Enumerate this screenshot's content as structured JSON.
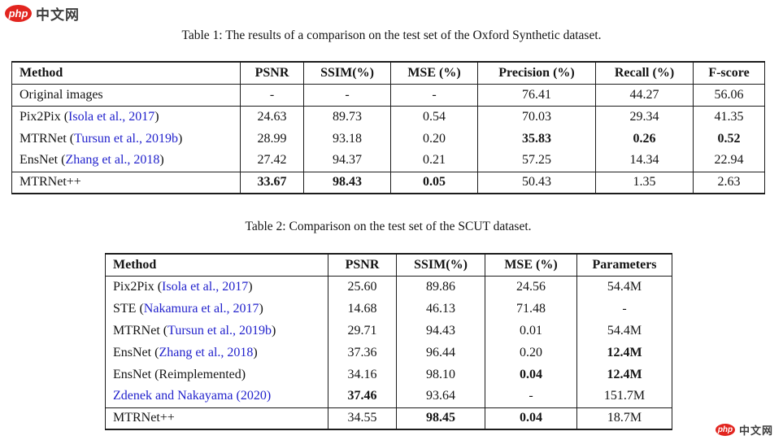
{
  "colors": {
    "link": "#2222cc",
    "badge": "#e2251f",
    "badge_text": "#ffffff",
    "logo_text": "#3d3d3d",
    "watermark_text": "#3d3d3d",
    "border": "#1c1c1c",
    "text": "#141414"
  },
  "logo_top": {
    "badge": "php",
    "text": "中文网"
  },
  "logo_bottom": {
    "badge": "php",
    "text": "中文网"
  },
  "table1": {
    "caption": "Table 1: The results of a comparison on the test set of the Oxford Synthetic dataset.",
    "columns": [
      "Method",
      "PSNR",
      "SSIM(%)",
      "MSE (%)",
      "Precision (%)",
      "Recall (%)",
      "F-score"
    ],
    "rows": [
      {
        "method": {
          "pre": "Original images",
          "link": "",
          "post": ""
        },
        "cells": [
          {
            "v": "-"
          },
          {
            "v": "-"
          },
          {
            "v": "-"
          },
          {
            "v": "76.41"
          },
          {
            "v": "44.27"
          },
          {
            "v": "56.06"
          }
        ],
        "rule_below": true
      },
      {
        "method": {
          "pre": "Pix2Pix (",
          "link": "Isola et al., 2017",
          "post": ")"
        },
        "cells": [
          {
            "v": "24.63"
          },
          {
            "v": "89.73"
          },
          {
            "v": "0.54"
          },
          {
            "v": "70.03"
          },
          {
            "v": "29.34"
          },
          {
            "v": "41.35"
          }
        ]
      },
      {
        "method": {
          "pre": "MTRNet (",
          "link": "Tursun et al., 2019b",
          "post": ")"
        },
        "cells": [
          {
            "v": "28.99"
          },
          {
            "v": "93.18"
          },
          {
            "v": "0.20"
          },
          {
            "v": "35.83",
            "b": true
          },
          {
            "v": "0.26",
            "b": true
          },
          {
            "v": "0.52",
            "b": true
          }
        ]
      },
      {
        "method": {
          "pre": "EnsNet (",
          "link": "Zhang et al., 2018",
          "post": ")"
        },
        "cells": [
          {
            "v": "27.42"
          },
          {
            "v": "94.37"
          },
          {
            "v": "0.21"
          },
          {
            "v": "57.25"
          },
          {
            "v": "14.34"
          },
          {
            "v": "22.94"
          }
        ],
        "rule_below": true
      },
      {
        "method": {
          "pre": "MTRNet++",
          "link": "",
          "post": ""
        },
        "cells": [
          {
            "v": "33.67",
            "b": true
          },
          {
            "v": "98.43",
            "b": true
          },
          {
            "v": "0.05",
            "b": true
          },
          {
            "v": "50.43"
          },
          {
            "v": "1.35"
          },
          {
            "v": "2.63"
          }
        ]
      }
    ]
  },
  "table2": {
    "caption": "Table 2: Comparison on the test set of the SCUT dataset.",
    "columns": [
      "Method",
      "PSNR",
      "SSIM(%)",
      "MSE (%)",
      "Parameters"
    ],
    "rows": [
      {
        "method": {
          "pre": "Pix2Pix (",
          "link": "Isola et al., 2017",
          "post": ")"
        },
        "cells": [
          {
            "v": "25.60"
          },
          {
            "v": "89.86"
          },
          {
            "v": "24.56"
          },
          {
            "v": "54.4M"
          }
        ]
      },
      {
        "method": {
          "pre": "STE (",
          "link": "Nakamura et al., 2017",
          "post": ")"
        },
        "cells": [
          {
            "v": "14.68"
          },
          {
            "v": "46.13"
          },
          {
            "v": "71.48"
          },
          {
            "v": "-"
          }
        ]
      },
      {
        "method": {
          "pre": "MTRNet (",
          "link": "Tursun et al., 2019b",
          "post": ")"
        },
        "cells": [
          {
            "v": "29.71"
          },
          {
            "v": "94.43"
          },
          {
            "v": "0.01"
          },
          {
            "v": "54.4M"
          }
        ]
      },
      {
        "method": {
          "pre": "EnsNet (",
          "link": "Zhang et al., 2018",
          "post": ")"
        },
        "cells": [
          {
            "v": "37.36"
          },
          {
            "v": "96.44"
          },
          {
            "v": "0.20"
          },
          {
            "v": "12.4M",
            "b": true
          }
        ]
      },
      {
        "method": {
          "pre": "EnsNet (Reimplemented)",
          "link": "",
          "post": ""
        },
        "cells": [
          {
            "v": "34.16"
          },
          {
            "v": "98.10"
          },
          {
            "v": "0.04",
            "b": true
          },
          {
            "v": "12.4M",
            "b": true
          }
        ]
      },
      {
        "method": {
          "pre": "",
          "link": "Zdenek and Nakayama (2020)",
          "post": ""
        },
        "cells": [
          {
            "v": "37.46",
            "b": true
          },
          {
            "v": "93.64"
          },
          {
            "v": "-"
          },
          {
            "v": "151.7M"
          }
        ],
        "rule_below": true
      },
      {
        "method": {
          "pre": "MTRNet++",
          "link": "",
          "post": ""
        },
        "cells": [
          {
            "v": "34.55"
          },
          {
            "v": "98.45",
            "b": true
          },
          {
            "v": "0.04",
            "b": true
          },
          {
            "v": "18.7M"
          }
        ]
      }
    ]
  }
}
